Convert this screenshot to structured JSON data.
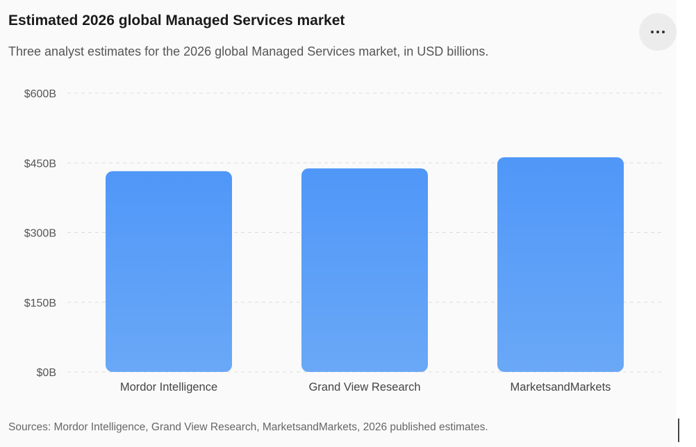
{
  "header": {
    "title": "Estimated 2026 global Managed Services market",
    "subtitle": "Three analyst estimates for the 2026 global Managed Services market, in USD billions.",
    "more_icon": "ellipsis-horizontal-icon"
  },
  "footer": {
    "source": "Sources: Mordor Intelligence, Grand View Research, MarketsandMarkets, 2026 published estimates."
  },
  "chart_data": {
    "type": "bar",
    "categories": [
      "Mordor Intelligence",
      "Grand View Research",
      "MarketsandMarkets"
    ],
    "values": [
      432,
      438,
      462
    ],
    "unit": "USD billions",
    "ylim": [
      0,
      600
    ],
    "yticks": [
      0,
      150,
      300,
      450,
      600
    ],
    "ytick_labels": [
      "$0B",
      "$150B",
      "$300B",
      "$450B",
      "$600B"
    ],
    "grid": true,
    "legend": "none",
    "bar_color_top": "#4f97f8",
    "bar_color_bottom": "#6aa8f7"
  }
}
